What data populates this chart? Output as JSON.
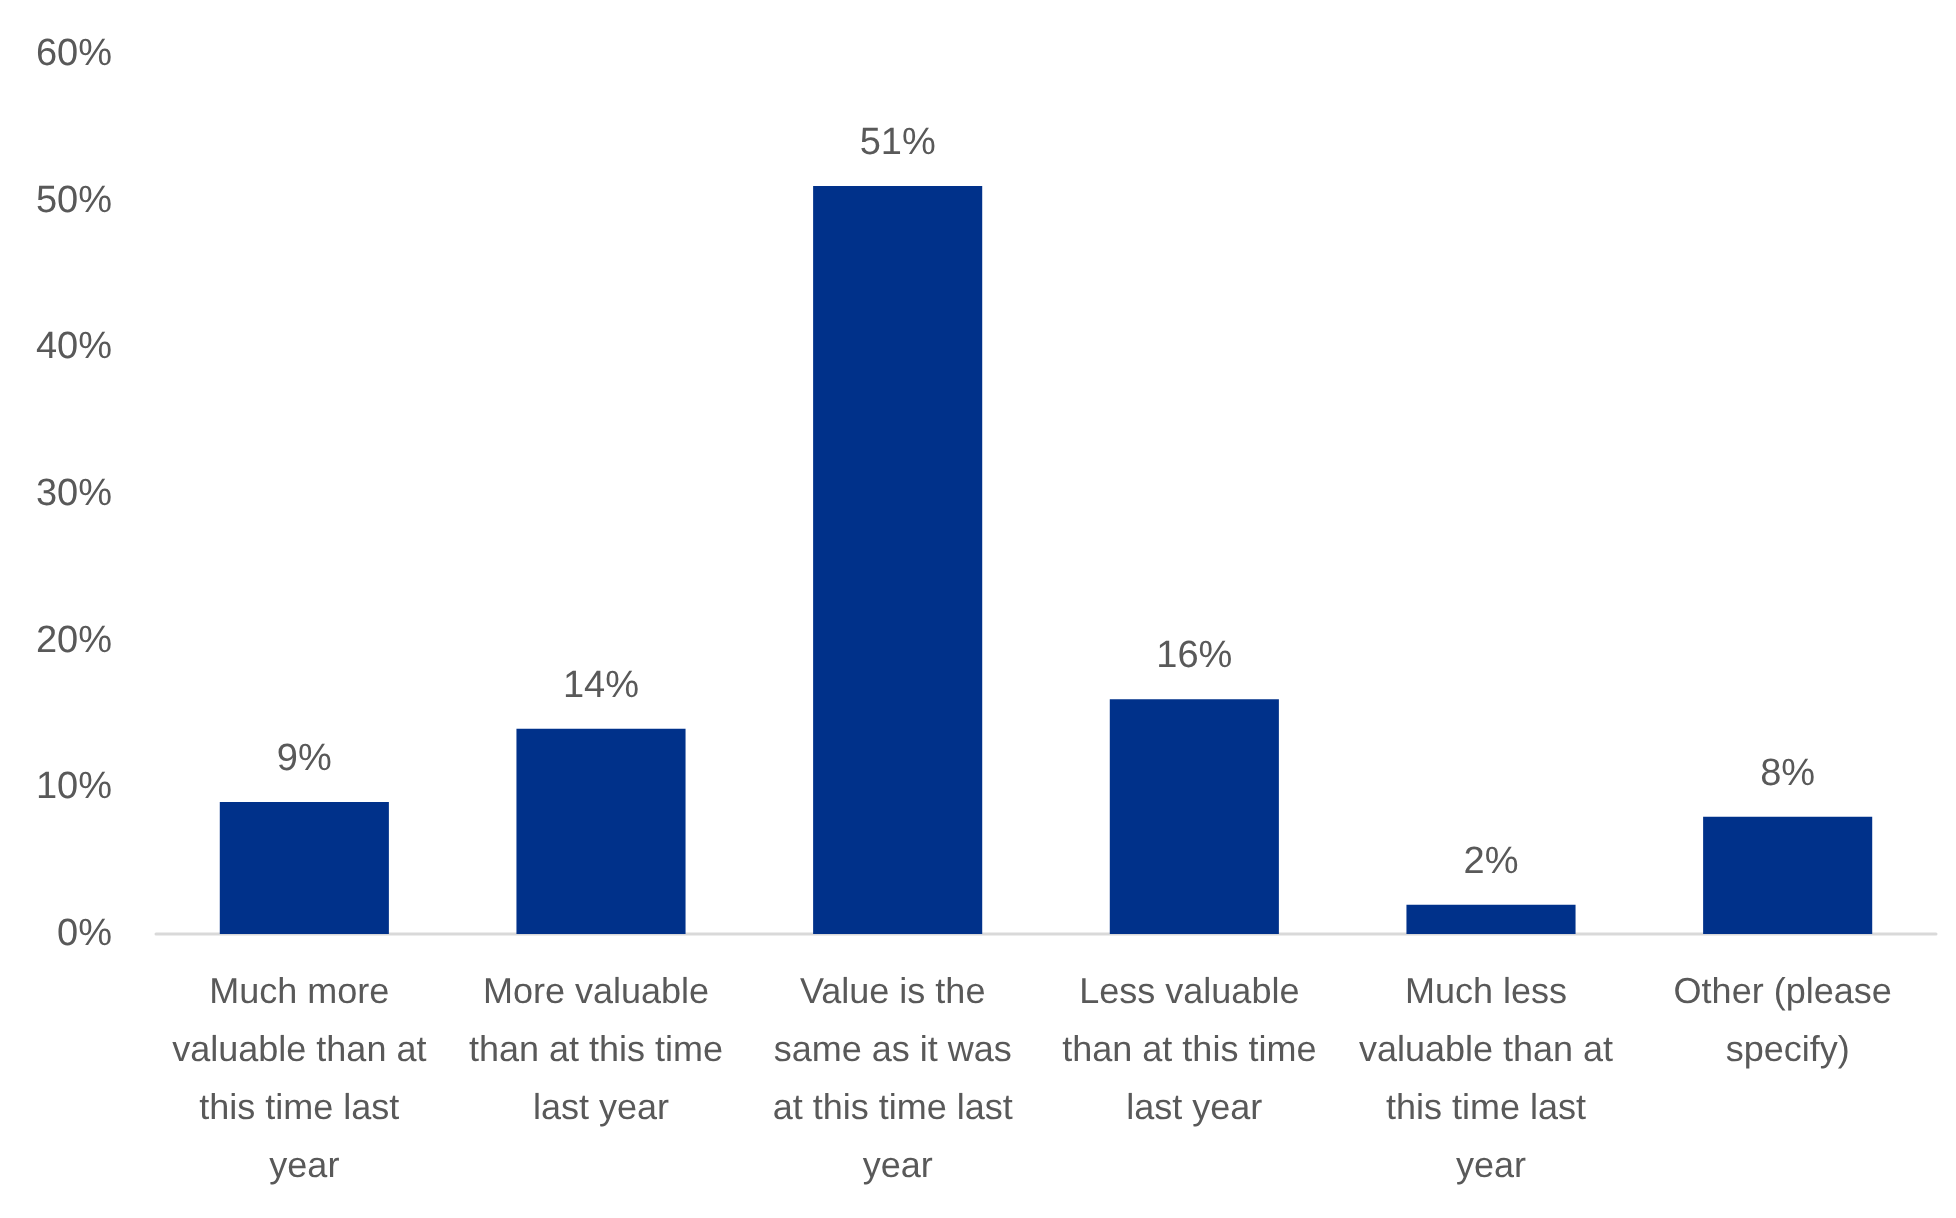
{
  "chart_data": {
    "type": "bar",
    "categories": [
      "Much more valuable than at this time last year",
      "More valuable than at this time last year",
      "Value is the same as it was at this time last year",
      "Less valuable than at this time last year",
      "Much less valuable than at this time last year",
      "Other (please specify)"
    ],
    "values": [
      9,
      14,
      51,
      16,
      2,
      8
    ],
    "value_labels": [
      "9%",
      "14%",
      "51%",
      "16%",
      "2%",
      "8%"
    ],
    "color": "#00318a",
    "ylim": [
      0,
      60
    ],
    "yticks": [
      {
        "value": 0,
        "label": "0%"
      },
      {
        "value": 10,
        "label": "10%"
      },
      {
        "value": 20,
        "label": "20%"
      },
      {
        "value": 30,
        "label": "30%"
      },
      {
        "value": 40,
        "label": "40%"
      },
      {
        "value": 50,
        "label": "50%"
      },
      {
        "value": 60,
        "label": "60%"
      }
    ],
    "grid": false
  }
}
